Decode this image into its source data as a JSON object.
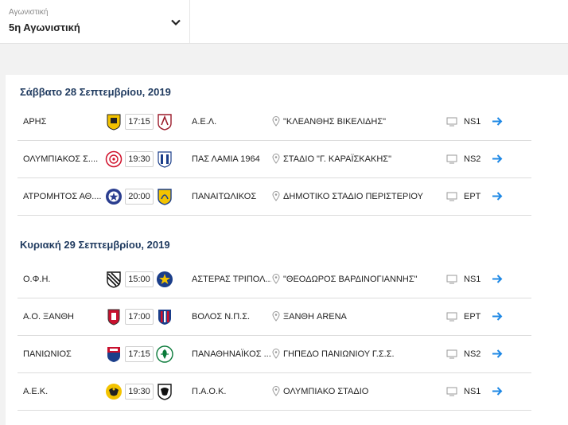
{
  "round_selector": {
    "label": "Αγωνιστική",
    "value": "5η Αγωνιστική"
  },
  "days": [
    {
      "heading": "Σάββατο 28 Σεπτεμβρίου, 2019",
      "matches": [
        {
          "home": "ΑΡΗΣ",
          "home_logo": "aris-logo",
          "time": "17:15",
          "away": "Α.Ε.Λ.",
          "away_logo": "ael-logo",
          "venue": "\"ΚΛΕΑΝΘΗΣ ΒΙΚΕΛΙΔΗΣ\"",
          "channel": "NS1"
        },
        {
          "home": "ΟΛΥΜΠΙΑΚΟΣ Σ....",
          "home_logo": "olympiacos-logo",
          "time": "19:30",
          "away": "ΠΑΣ ΛΑΜΙΑ 1964",
          "away_logo": "lamia-logo",
          "venue": "ΣΤΑΔΙΟ \"Γ. ΚΑΡΑΪΣΚΑΚΗΣ\"",
          "channel": "NS2"
        },
        {
          "home": "ΑΤΡΟΜΗΤΟΣ ΑΘ....",
          "home_logo": "atromitos-logo",
          "time": "20:00",
          "away": "ΠΑΝΑΙΤΩΛΙΚΟΣ",
          "away_logo": "panaitolikos-logo",
          "venue": "ΔΗΜΟΤΙΚΟ ΣΤΑΔΙΟ ΠΕΡΙΣΤΕΡΙΟΥ",
          "channel": "ΕΡΤ"
        }
      ]
    },
    {
      "heading": "Κυριακή 29 Σεπτεμβρίου, 2019",
      "matches": [
        {
          "home": "Ο.Φ.Η.",
          "home_logo": "ofi-logo",
          "time": "15:00",
          "away": "ΑΣΤΕΡΑΣ ΤΡΙΠΟΛ...",
          "away_logo": "asteras-logo",
          "venue": "\"ΘΕΟΔΩΡΟΣ ΒΑΡΔΙΝΟΓΙΑΝΝΗΣ\"",
          "channel": "NS1"
        },
        {
          "home": "Α.Ο. ΞΑΝΘΗ",
          "home_logo": "xanthi-logo",
          "time": "17:00",
          "away": "ΒΟΛΟΣ Ν.Π.Σ.",
          "away_logo": "volos-logo",
          "venue": "ΞΑΝΘΗ ARENA",
          "channel": "ΕΡΤ"
        },
        {
          "home": "ΠΑΝΙΩΝΙΟΣ",
          "home_logo": "panionios-logo",
          "time": "17:15",
          "away": "ΠΑΝΑΘΗΝΑΪΚΟΣ ...",
          "away_logo": "panathinaikos-logo",
          "venue": "ΓΗΠΕΔΟ ΠΑΝΙΩΝΙΟΥ Γ.Σ.Σ.",
          "channel": "NS2"
        },
        {
          "home": "Α.Ε.Κ.",
          "home_logo": "aek-logo",
          "time": "19:30",
          "away": "Π.Α.Ο.Κ.",
          "away_logo": "paok-logo",
          "venue": "ΟΛΥΜΠΙΑΚΟ ΣΤΑΔΙΟ",
          "channel": "NS1"
        }
      ]
    }
  ],
  "colors": {
    "heading": "#1f3a5f",
    "arrow": "#1e88e5",
    "separator": "#dcdcdc",
    "background": "#f2f2f2"
  }
}
